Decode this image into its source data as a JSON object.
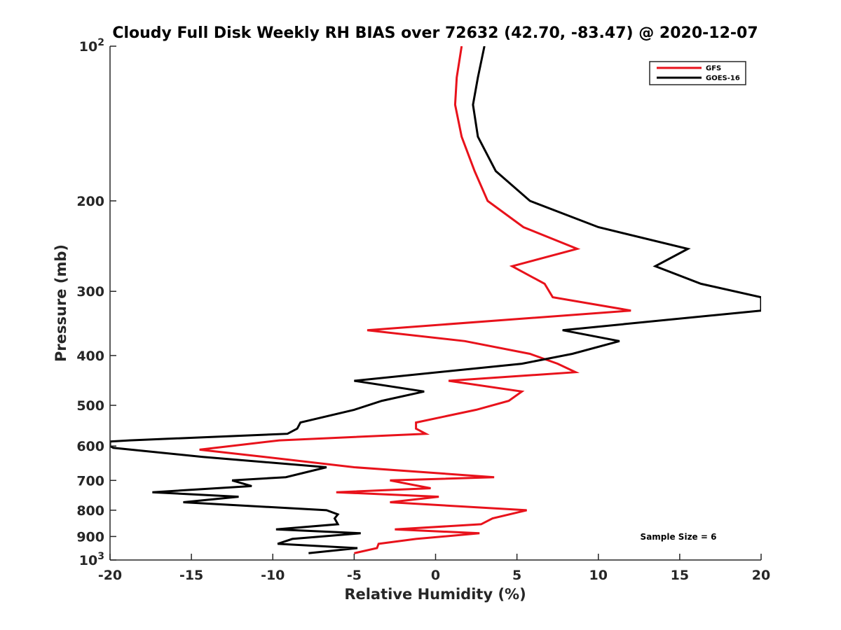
{
  "chart_data": {
    "type": "line",
    "title": "Cloudy Full Disk Weekly RH BIAS over 72632 (42.70, -83.47) @ 2020-12-07",
    "xlabel": "Relative Humidity (%)",
    "ylabel": "Pressure (mb)",
    "xlim": [
      -20,
      20
    ],
    "ylim": [
      1000,
      100
    ],
    "y_scale": "log",
    "y_reversed": true,
    "xticks": [
      -20,
      -15,
      -10,
      -5,
      0,
      5,
      10,
      15,
      20
    ],
    "yticks": [
      {
        "value": 100,
        "base": "10",
        "exp": "2"
      },
      {
        "value": 200,
        "label": "200"
      },
      {
        "value": 300,
        "label": "300"
      },
      {
        "value": 400,
        "label": "400"
      },
      {
        "value": 500,
        "label": "500"
      },
      {
        "value": 600,
        "label": "600"
      },
      {
        "value": 700,
        "label": "700"
      },
      {
        "value": 800,
        "label": "800"
      },
      {
        "value": 900,
        "label": "900"
      },
      {
        "value": 1000,
        "base": "10",
        "exp": "3"
      }
    ],
    "grid": false,
    "legend_position": "top-right",
    "annotation": "Sample Size = 6",
    "series": [
      {
        "name": "GFS",
        "color": "#e8121b",
        "points": [
          [
            1.6,
            100
          ],
          [
            1.3,
            115
          ],
          [
            1.2,
            130
          ],
          [
            1.6,
            150
          ],
          [
            2.4,
            175
          ],
          [
            3.2,
            200
          ],
          [
            5.4,
            225
          ],
          [
            8.7,
            248
          ],
          [
            4.7,
            268
          ],
          [
            6.7,
            290
          ],
          [
            7.2,
            308
          ],
          [
            12.0,
            327
          ],
          [
            -4.2,
            357
          ],
          [
            1.8,
            375
          ],
          [
            5.8,
            397
          ],
          [
            7.5,
            415
          ],
          [
            8.6,
            431
          ],
          [
            0.8,
            448
          ],
          [
            5.3,
            470
          ],
          [
            4.5,
            490
          ],
          [
            2.5,
            510
          ],
          [
            -1.2,
            540
          ],
          [
            -1.2,
            555
          ],
          [
            -0.6,
            568
          ],
          [
            -9.6,
            585
          ],
          [
            -14.5,
            610
          ],
          [
            -10.5,
            630
          ],
          [
            -5.0,
            660
          ],
          [
            3.6,
            690
          ],
          [
            -2.8,
            700
          ],
          [
            -0.3,
            725
          ],
          [
            -6.1,
            738
          ],
          [
            0.2,
            753
          ],
          [
            -2.8,
            772
          ],
          [
            5.6,
            800
          ],
          [
            3.5,
            830
          ],
          [
            2.8,
            852
          ],
          [
            -2.5,
            872
          ],
          [
            2.7,
            887
          ],
          [
            -1.2,
            910
          ],
          [
            -3.5,
            930
          ],
          [
            -3.6,
            948
          ],
          [
            -5.0,
            970
          ]
        ]
      },
      {
        "name": "GOES-16",
        "color": "#000000",
        "points": [
          [
            3.0,
            100
          ],
          [
            2.6,
            115
          ],
          [
            2.3,
            130
          ],
          [
            2.6,
            150
          ],
          [
            3.7,
            175
          ],
          [
            5.8,
            200
          ],
          [
            10.0,
            225
          ],
          [
            15.5,
            248
          ],
          [
            13.5,
            268
          ],
          [
            16.3,
            290
          ],
          [
            20.0,
            308
          ],
          [
            20.0,
            327
          ],
          [
            7.8,
            357
          ],
          [
            11.3,
            375
          ],
          [
            8.4,
            397
          ],
          [
            5.3,
            415
          ],
          [
            -5.0,
            448
          ],
          [
            -0.7,
            470
          ],
          [
            -3.3,
            490
          ],
          [
            -5.0,
            510
          ],
          [
            -8.3,
            540
          ],
          [
            -8.5,
            555
          ],
          [
            -9.1,
            568
          ],
          [
            -18.8,
            585
          ],
          [
            -20.0,
            588
          ],
          [
            -20.0,
            600
          ],
          [
            -19.8,
            605
          ],
          [
            -14.3,
            630
          ],
          [
            -6.7,
            660
          ],
          [
            -9.2,
            690
          ],
          [
            -12.5,
            700
          ],
          [
            -11.3,
            718
          ],
          [
            -17.4,
            738
          ],
          [
            -12.1,
            753
          ],
          [
            -15.5,
            772
          ],
          [
            -6.7,
            800
          ],
          [
            -6.0,
            815
          ],
          [
            -6.2,
            830
          ],
          [
            -6.0,
            852
          ],
          [
            -9.8,
            872
          ],
          [
            -4.6,
            887
          ],
          [
            -8.8,
            910
          ],
          [
            -9.7,
            930
          ],
          [
            -4.8,
            948
          ],
          [
            -7.8,
            970
          ]
        ]
      }
    ]
  }
}
